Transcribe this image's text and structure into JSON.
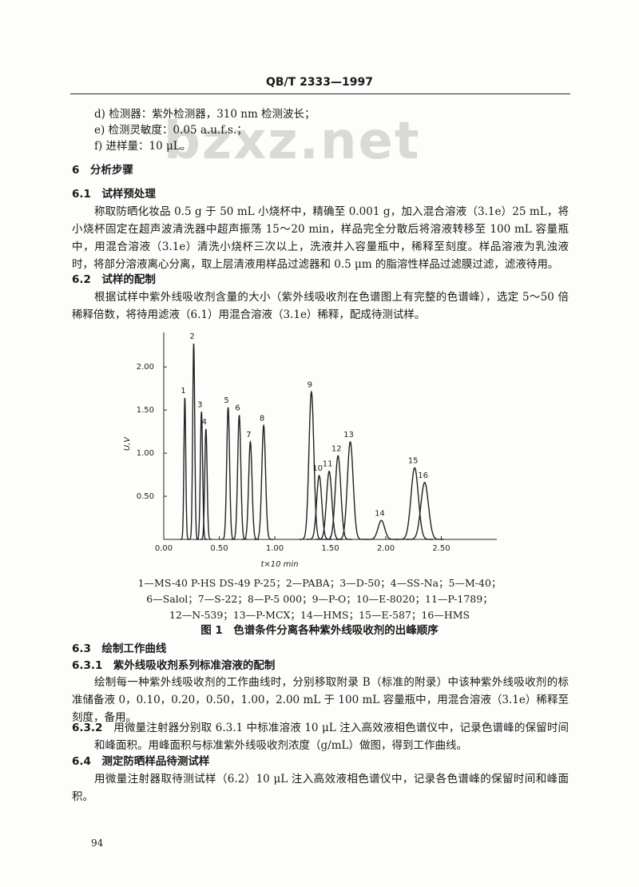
{
  "header": "QB/T 2333—1997",
  "watermark": "bzxz.net",
  "list_items": [
    "d) 检测器：紫外检测器，310 nm 检测波长；",
    "e) 检测灵敏度：0.05 a.u.f.s.；",
    "f) 进样量：10 μL。"
  ],
  "sections": [
    {
      "heading": "6　分析步骤"
    },
    {
      "heading": "6.1　试样预处理",
      "paragraph": "称取防晒化妆品 0.5 g 于 50 mL 小烧杯中，精确至 0.001 g，加入混合溶液（3.1e）25 mL，将小烧杯固定在超声波清洗器中超声振荡 15～20 min，样品完全分散后将溶液转移至 100 mL 容量瓶中，用混合溶液（3.1e）清洗小烧杯三次以上，洗液并入容量瓶中，稀释至刻度。样品溶液为乳浊液时，将部分溶液离心分离，取上层清液用样品过滤器和 0.5 μm 的脂溶性样品过滤膜过滤，滤液待用。"
    },
    {
      "heading": "6.2　试样的配制",
      "paragraph": "根据试样中紫外线吸收剂含量的大小（紫外线吸收剂在色谱图上有完整的色谱峰），选定 5～50 倍稀释倍数，将待用滤液（6.1）用混合溶液（3.1e）稀释，配成待测试样。"
    }
  ],
  "figure": {
    "chart_data": {
      "type": "chromatogram",
      "ylabel": "U,V",
      "xlabel": "t×10 min",
      "color": "#222222",
      "xlim": [
        0,
        3.0
      ],
      "ylim": [
        0,
        2.4
      ],
      "xticks": [
        {
          "value": 0,
          "label": "0.00"
        },
        {
          "value": 0.5,
          "label": "0.50"
        },
        {
          "value": 1,
          "label": "1.00"
        },
        {
          "value": 1.5,
          "label": "1.50"
        },
        {
          "value": 2,
          "label": "2.00"
        },
        {
          "value": 2.5,
          "label": "2.50"
        }
      ],
      "yticks": [
        {
          "value": 0.5,
          "label": "0.50"
        },
        {
          "value": 1,
          "label": "1.00"
        },
        {
          "value": 1.5,
          "label": "1.50"
        },
        {
          "value": 2,
          "label": "2.00"
        }
      ],
      "peaks": [
        {
          "label": "1",
          "time": 0.19,
          "height": 1.64
        },
        {
          "label": "2",
          "time": 0.27,
          "height": 2.27
        },
        {
          "label": "3",
          "time": 0.34,
          "height": 1.48
        },
        {
          "label": "4",
          "time": 0.38,
          "height": 1.28
        },
        {
          "label": "5",
          "time": 0.58,
          "height": 1.53
        },
        {
          "label": "6",
          "time": 0.68,
          "height": 1.44
        },
        {
          "label": "7",
          "time": 0.78,
          "height": 1.13
        },
        {
          "label": "8",
          "time": 0.9,
          "height": 1.32
        },
        {
          "label": "9",
          "time": 1.33,
          "height": 1.71
        },
        {
          "label": "10",
          "time": 1.4,
          "height": 0.74
        },
        {
          "label": "11",
          "time": 1.49,
          "height": 0.79
        },
        {
          "label": "12",
          "time": 1.57,
          "height": 0.97
        },
        {
          "label": "13",
          "time": 1.68,
          "height": 1.13
        },
        {
          "label": "14",
          "time": 1.96,
          "height": 0.22
        },
        {
          "label": "15",
          "time": 2.26,
          "height": 0.83
        },
        {
          "label": "16",
          "time": 2.35,
          "height": 0.66
        }
      ]
    },
    "peak_key": [
      "1—MS-40 P-HS DS-49 P-25；2—PABA；3—D-50；4—SS-Na；5—M-40；",
      "6—Salol；7—S-22；8—P-5 000；9—P-O；10—E-8020；11—P-1789；",
      "12—N-539；13—P-MCX；14—HMS；15—E-587；16—HMS"
    ],
    "caption": "图 1　色谱条件分离各种紫外线吸收剂的出峰顺序"
  },
  "sections_after": [
    {
      "heading": "6.3　绘制工作曲线"
    },
    {
      "heading": "6.3.1　紫外线吸收剂系列标准溶液的配制",
      "paragraph": "绘制每一种紫外线吸收剂的工作曲线时，分别移取附录 B（标准的附录）中该种紫外线吸收剂的标准储备液 0，0.10，0.20，0.50，1.00，2.00 mL 于 100 mL 容量瓶中，用混合溶液（3.1e）稀释至刻度，备用。"
    },
    {
      "heading": "6.3.2",
      "paragraph": "用微量注射器分别取 6.3.1 中标准溶液 10 μL 注入高效液相色谱仪中，记录色谱峰的保留时间和峰面积。用峰面积与标准紫外线吸收剂浓度（g/mL）做图，得到工作曲线。"
    },
    {
      "heading": "6.4　测定防晒样品待测试样",
      "paragraph": "用微量注射器取待测试样（6.2）10 μL 注入高效液相色谱仪中，记录各色谱峰的保留时间和峰面积。"
    }
  ],
  "page_number": "94"
}
